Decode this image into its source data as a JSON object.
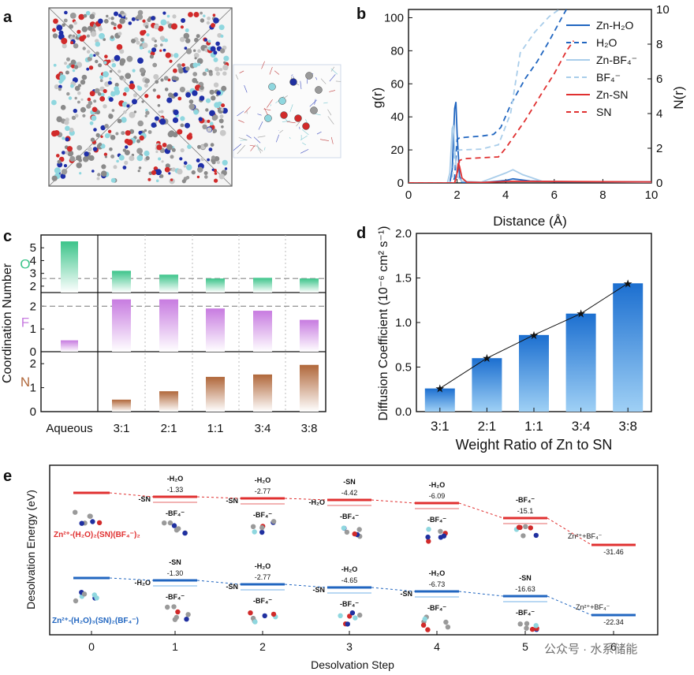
{
  "colors": {
    "blue": "#2166c0",
    "lightblue": "#a9cdea",
    "red": "#e03030",
    "green": "#3cc48a",
    "purple": "#c77be0",
    "brown": "#b0673a",
    "barblue": "#1c6fd0",
    "grey": "#888888"
  },
  "panels": {
    "a": {
      "label": "a"
    },
    "b": {
      "label": "b"
    },
    "c": {
      "label": "c"
    },
    "d": {
      "label": "d"
    },
    "e": {
      "label": "e"
    }
  },
  "chart_data": [
    {
      "id": "b",
      "type": "line",
      "xlabel": "Distance (Å)",
      "ylabel": "g(r)",
      "ylabel_right": "N(r)",
      "xlim": [
        0,
        10
      ],
      "ylim": [
        0,
        105
      ],
      "ylim_right": [
        0,
        10
      ],
      "xticks": [
        "0",
        "2",
        "4",
        "6",
        "8",
        "10"
      ],
      "yticks": [
        "0",
        "20",
        "40",
        "60",
        "80",
        "100"
      ],
      "yticks_right": [
        "0",
        "2",
        "4",
        "6",
        "8",
        "10"
      ],
      "legend": [
        "Zn-H₂O",
        "H₂O",
        "Zn-BF₄⁻",
        "BF₄⁻",
        "Zn-SN",
        "SN"
      ],
      "series": [
        {
          "name": "Zn-H2O g(r)",
          "style": "solid",
          "color": "blue",
          "axis": "left",
          "x": [
            0,
            1.7,
            1.8,
            1.9,
            1.95,
            2.0,
            2.1,
            2.2,
            2.5,
            3.0,
            4.0,
            4.3,
            5.0,
            6.0,
            8.0,
            10.0
          ],
          "y": [
            0,
            0,
            8,
            45,
            49,
            30,
            4,
            0.5,
            0.2,
            0.2,
            1.5,
            2.5,
            1.2,
            0.8,
            0.6,
            0.6
          ]
        },
        {
          "name": "H2O N(r)",
          "style": "dashed",
          "color": "blue",
          "axis": "right",
          "x": [
            0,
            1.8,
            1.9,
            2.0,
            2.1,
            2.5,
            3.0,
            3.5,
            3.8,
            4.2,
            4.8,
            5.3,
            5.8,
            6.3,
            6.5
          ],
          "y": [
            0,
            0,
            0.3,
            2.5,
            2.6,
            2.65,
            2.7,
            2.8,
            3.2,
            4.5,
            6.0,
            7.0,
            8.2,
            9.5,
            10
          ]
        },
        {
          "name": "Zn-BF4 g(r)",
          "style": "solid",
          "color": "lightblue",
          "axis": "left",
          "x": [
            0,
            1.6,
            1.7,
            1.8,
            1.85,
            1.9,
            2.0,
            2.2,
            3.0,
            4.0,
            4.3,
            4.7,
            5.5,
            10.0
          ],
          "y": [
            0,
            0,
            6,
            33,
            35,
            20,
            4,
            1,
            0.5,
            6,
            8,
            5,
            1,
            0.4
          ]
        },
        {
          "name": "BF4 N(r)",
          "style": "dashed",
          "color": "lightblue",
          "axis": "right",
          "x": [
            0,
            1.7,
            1.8,
            1.9,
            2.1,
            3.0,
            3.7,
            4.2,
            4.6,
            5.2,
            5.8,
            6.2
          ],
          "y": [
            0,
            0,
            0.3,
            1.8,
            1.9,
            1.95,
            2.2,
            4.0,
            7.5,
            8.7,
            9.6,
            10
          ]
        },
        {
          "name": "Zn-SN g(r)",
          "style": "solid",
          "color": "red",
          "axis": "left",
          "x": [
            0,
            1.9,
            2.0,
            2.05,
            2.1,
            2.2,
            2.4,
            3.0,
            4.2,
            10.0
          ],
          "y": [
            0,
            0,
            6,
            12,
            10,
            3,
            0.5,
            0.3,
            1,
            0.6
          ]
        },
        {
          "name": "SN N(r)",
          "style": "dashed",
          "color": "red",
          "axis": "right",
          "x": [
            0,
            1.9,
            2.0,
            2.1,
            2.3,
            3.0,
            3.7,
            4.0,
            4.8,
            5.5,
            6.0,
            6.5,
            6.8
          ],
          "y": [
            0,
            0,
            0.5,
            1.3,
            1.4,
            1.45,
            1.5,
            2.0,
            3.6,
            5.2,
            6.3,
            7.6,
            8.2
          ]
        }
      ]
    },
    {
      "id": "c",
      "type": "bar",
      "ylabel": "Coordination Number",
      "categories": [
        "Aqueous",
        "3:1",
        "2:1",
        "1:1",
        "3:4",
        "3:8"
      ],
      "panels": [
        {
          "name": "O",
          "color": "green",
          "values": [
            5.5,
            3.2,
            2.9,
            2.6,
            2.65,
            2.6
          ],
          "ylim": [
            1.5,
            6
          ],
          "yticks": [
            "2",
            "3",
            "4",
            "5"
          ],
          "ref": 2.6
        },
        {
          "name": "F",
          "color": "purple",
          "values": [
            0.5,
            2.3,
            2.3,
            1.9,
            1.8,
            1.4
          ],
          "ylim": [
            0,
            2.6
          ],
          "yticks": [
            "0",
            "1",
            "2"
          ],
          "ref": 2.0
        },
        {
          "name": "N",
          "color": "brown",
          "values": [
            0,
            0.5,
            0.85,
            1.45,
            1.55,
            1.95
          ],
          "ylim": [
            0,
            2.5
          ],
          "yticks": [
            "0",
            "1",
            "2"
          ]
        }
      ]
    },
    {
      "id": "d",
      "type": "bar",
      "title": "",
      "xlabel": "Weight Ratio of Zn to SN",
      "ylabel": "Diffusion Coefficient (10⁻⁶ cm² s⁻¹)",
      "categories": [
        "3:1",
        "2:1",
        "1:1",
        "3:4",
        "3:8"
      ],
      "values": [
        0.26,
        0.6,
        0.86,
        1.1,
        1.44
      ],
      "ylim": [
        0,
        2.0
      ],
      "yticks": [
        "0.0",
        "0.5",
        "1.0",
        "1.5",
        "2.0"
      ]
    },
    {
      "id": "e",
      "type": "line",
      "xlabel": "Desolvation Step",
      "ylabel": "Desolvation Energy (eV)",
      "xticks": [
        "0",
        "1",
        "2",
        "3",
        "4",
        "5",
        "6"
      ],
      "series": [
        {
          "name": "Zn2+-(H2O)2(SN)(BF4-)2",
          "color": "red",
          "labels_top": [
            "",
            "-H₂O",
            "-H₂O",
            "-SN",
            "-H₂O",
            "-BF₄⁻",
            ""
          ],
          "values_text": [
            "",
            "-1.33",
            "-2.77",
            "-4.42",
            "-6.09",
            "-15.1",
            "-31.46"
          ],
          "values": [
            0,
            -1.33,
            -2.77,
            -4.42,
            -6.09,
            -15.1,
            -31.46
          ],
          "labels_left": [
            "",
            "-SN",
            "-SN",
            "-H₂O",
            "",
            "",
            ""
          ],
          "labels_bottom": [
            "",
            "-BF₄⁻",
            "-BF₄⁻",
            "-BF₄⁻",
            "-BF₄⁻",
            "",
            ""
          ]
        },
        {
          "name": "Zn2+-(H2O)3(SN)2(BF4-)",
          "color": "blue",
          "labels_top": [
            "",
            "-SN",
            "-H₂O",
            "-H₂O",
            "-H₂O",
            "-SN",
            ""
          ],
          "values_text": [
            "",
            "-1.30",
            "-2.77",
            "-4.65",
            "-6.73",
            "-16.63",
            "-22.34"
          ],
          "values": [
            0,
            -1.3,
            -2.77,
            -4.65,
            -6.73,
            -16.63,
            -22.34
          ],
          "labels_left": [
            "",
            "-H₂O",
            "-SN",
            "-SN",
            "-SN",
            "",
            ""
          ],
          "labels_bottom": [
            "",
            "-BF₄⁻",
            "-BF₄⁻",
            "-BF₄⁻",
            "-BF₄⁻",
            "-BF₄⁻",
            ""
          ]
        }
      ],
      "end_label": "Zn²⁺+BF₄⁻",
      "species_red": "Zn²⁺-(H₂O)₂(SN)(BF₄⁻)₂",
      "species_blue": "Zn²⁺-(H₂O)₃(SN)₂(BF₄⁻)"
    }
  ],
  "watermark": "公众号 · 水系储能"
}
